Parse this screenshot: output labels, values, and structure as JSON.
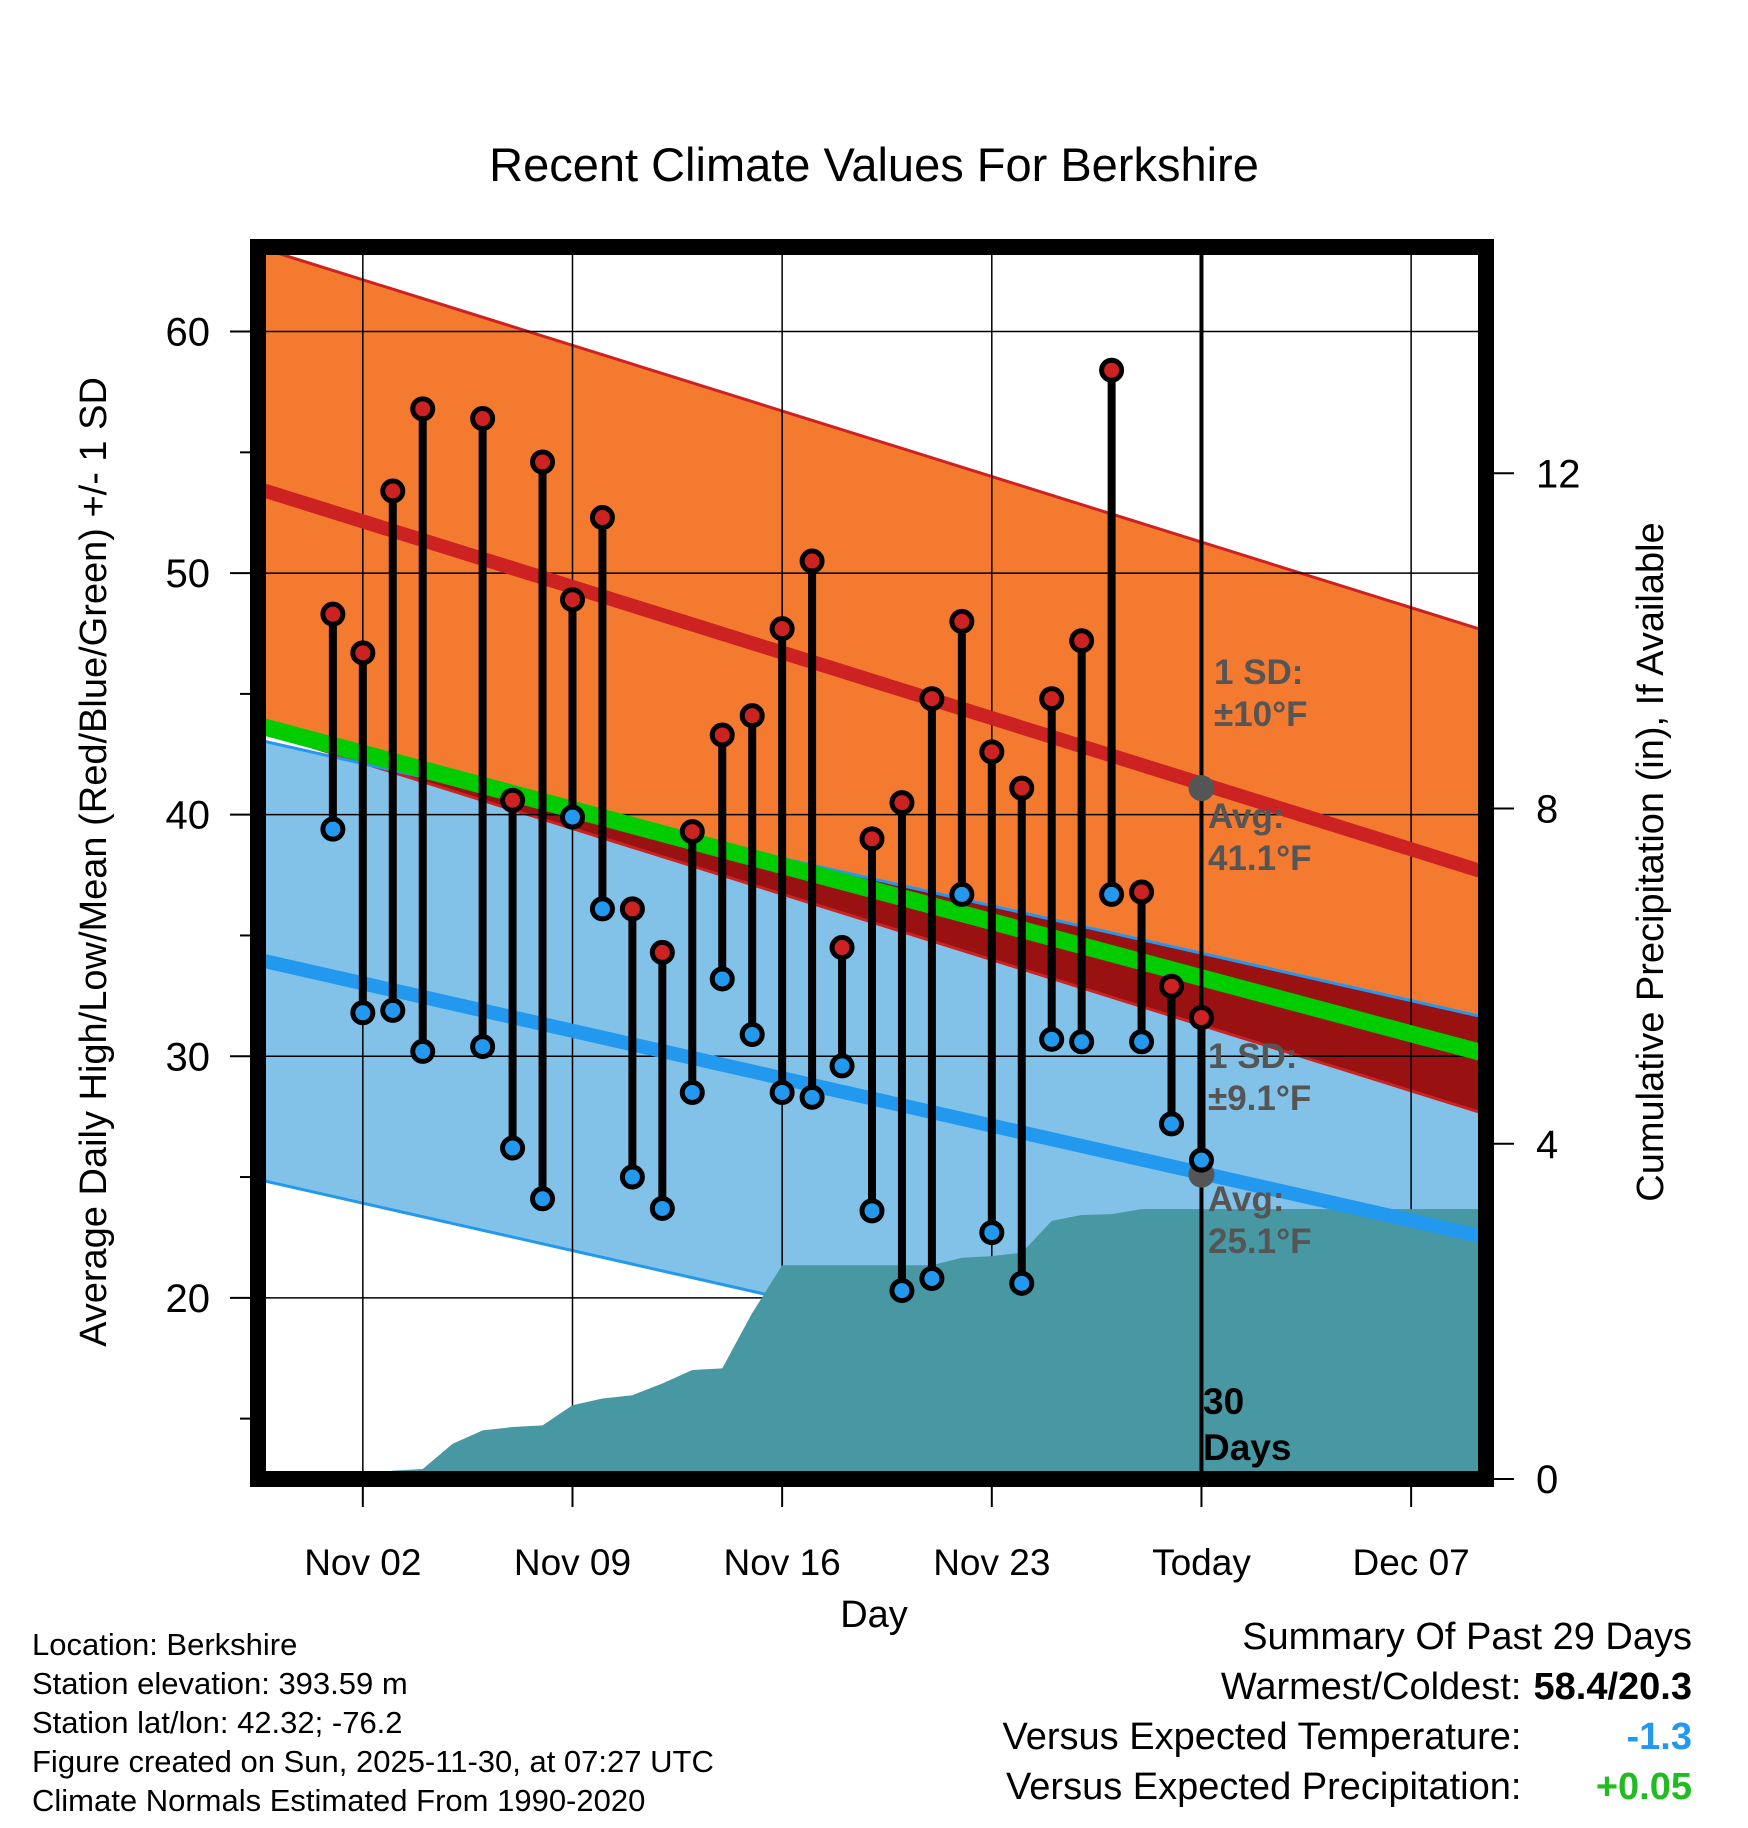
{
  "chart_data": {
    "type": "line",
    "title": "Recent Climate Values For Berkshire",
    "xlabel": "Day",
    "ylabel": "Average Daily High/Low/Mean (Red/Blue/Green) +/- 1 SD",
    "y2label": "Cumulative Precipitation (in), If Available",
    "x_domain_days": [
      -1.5,
      39.5
    ],
    "ylim": [
      12.5,
      63.5
    ],
    "y2lim": [
      0,
      14.7
    ],
    "y_ticks": [
      20,
      30,
      40,
      50,
      60
    ],
    "y2_ticks": [
      0,
      4,
      8,
      12
    ],
    "x_ticks": [
      {
        "day": 2,
        "label": "Nov 02"
      },
      {
        "day": 9,
        "label": "Nov 09"
      },
      {
        "day": 16,
        "label": "Nov 16"
      },
      {
        "day": 23,
        "label": "Nov 23"
      },
      {
        "day": 30,
        "label": "Today"
      },
      {
        "day": 37,
        "label": "Dec 07"
      }
    ],
    "today_day": 30,
    "normals": {
      "high": {
        "start": 53.5,
        "end": 37.6,
        "sd": 10
      },
      "low": {
        "start": 34.0,
        "end": 22.5,
        "sd": 9.1
      },
      "mean": {
        "start": 43.7,
        "end": 30.1
      }
    },
    "series": [
      {
        "name": "Daily High",
        "color": "#cc2222",
        "values": [
          48.3,
          46.7,
          53.4,
          56.8,
          null,
          56.4,
          40.6,
          54.6,
          48.9,
          52.3,
          36.1,
          34.3,
          39.3,
          43.3,
          44.1,
          47.7,
          50.5,
          34.5,
          39.0,
          40.5,
          44.8,
          48.0,
          42.6,
          41.1,
          44.8,
          47.2,
          58.4,
          36.8,
          32.9,
          31.6
        ]
      },
      {
        "name": "Daily Low",
        "color": "#2299ee",
        "values": [
          39.4,
          31.8,
          31.9,
          30.2,
          null,
          30.4,
          26.2,
          24.1,
          39.9,
          36.1,
          25.0,
          23.7,
          28.5,
          33.2,
          30.9,
          28.5,
          28.3,
          29.6,
          23.6,
          20.3,
          20.8,
          36.7,
          22.7,
          20.6,
          30.7,
          30.6,
          36.7,
          30.6,
          27.2,
          25.7
        ]
      }
    ],
    "cumulative_precip": [
      {
        "day": 1,
        "value": 0
      },
      {
        "day": 2,
        "value": 0.02
      },
      {
        "day": 3,
        "value": 0.1
      },
      {
        "day": 4,
        "value": 0.12
      },
      {
        "day": 5,
        "value": 0.42
      },
      {
        "day": 6,
        "value": 0.58
      },
      {
        "day": 7,
        "value": 0.62
      },
      {
        "day": 8,
        "value": 0.64
      },
      {
        "day": 9,
        "value": 0.88
      },
      {
        "day": 10,
        "value": 0.96
      },
      {
        "day": 11,
        "value": 1.0
      },
      {
        "day": 12,
        "value": 1.14
      },
      {
        "day": 13,
        "value": 1.3
      },
      {
        "day": 14,
        "value": 1.32
      },
      {
        "day": 15,
        "value": 1.98
      },
      {
        "day": 16,
        "value": 2.55
      },
      {
        "day": 17,
        "value": 2.55
      },
      {
        "day": 21,
        "value": 2.55
      },
      {
        "day": 22,
        "value": 2.64
      },
      {
        "day": 23,
        "value": 2.66
      },
      {
        "day": 24,
        "value": 2.7
      },
      {
        "day": 25,
        "value": 3.08
      },
      {
        "day": 26,
        "value": 3.15
      },
      {
        "day": 27,
        "value": 3.16
      },
      {
        "day": 28,
        "value": 3.22
      },
      {
        "day": 39.5,
        "value": 3.22
      }
    ],
    "annotations": {
      "high_sd": "1 SD: ±10°F",
      "high_avg": "Avg: 41.1°F",
      "low_sd": "1 SD: ±9.1°F",
      "low_avg": "Avg: 25.1°F",
      "period": "30 Days",
      "high_avg_today": 41.1,
      "low_avg_today": 25.1
    }
  },
  "labels": {
    "title": "Recent Climate Values For Berkshire",
    "xlabel": "Day",
    "ylabel": "Average Daily High/Low/Mean (Red/Blue/Green) +/- 1 SD",
    "y2label": "Cumulative Precipitation (in), If Available",
    "high_sd_line1": "1 SD:",
    "high_sd_line2": "±10°F",
    "high_avg_line1": "Avg:",
    "high_avg_line2": "41.1°F",
    "low_sd_line1": "1 SD:",
    "low_sd_line2": "±9.1°F",
    "low_avg_line1": "Avg:",
    "low_avg_line2": "25.1°F",
    "period_line1": "30",
    "period_line2": "Days"
  },
  "footer": {
    "location": "Location: Berkshire",
    "elevation": "Station elevation: 393.59 m",
    "latlon": "Station lat/lon: 42.32; -76.2",
    "created": "Figure created on Sun, 2025-11-30, at 07:27 UTC",
    "normals": "Climate Normals Estimated From 1990-2020"
  },
  "summary": {
    "title": "Summary Of Past 29 Days",
    "warm_cold_label": "Warmest/Coldest:",
    "warm_cold_value": "58.4/20.3",
    "temp_label": "Versus Expected Temperature:",
    "temp_value": "-1.3",
    "precip_label": "Versus Expected Precipitation:",
    "precip_value": "+0.05",
    "colors": {
      "temp": "#2299ee",
      "precip": "#22bb22"
    }
  },
  "colors": {
    "high_band": "#f47a30",
    "high_line": "#cc2222",
    "low_band": "#82c1e8",
    "low_line": "#2299ee",
    "mean_line": "#00cc00",
    "overlap": "#991111",
    "precip": "#4898a4",
    "annotation": "#555555"
  }
}
